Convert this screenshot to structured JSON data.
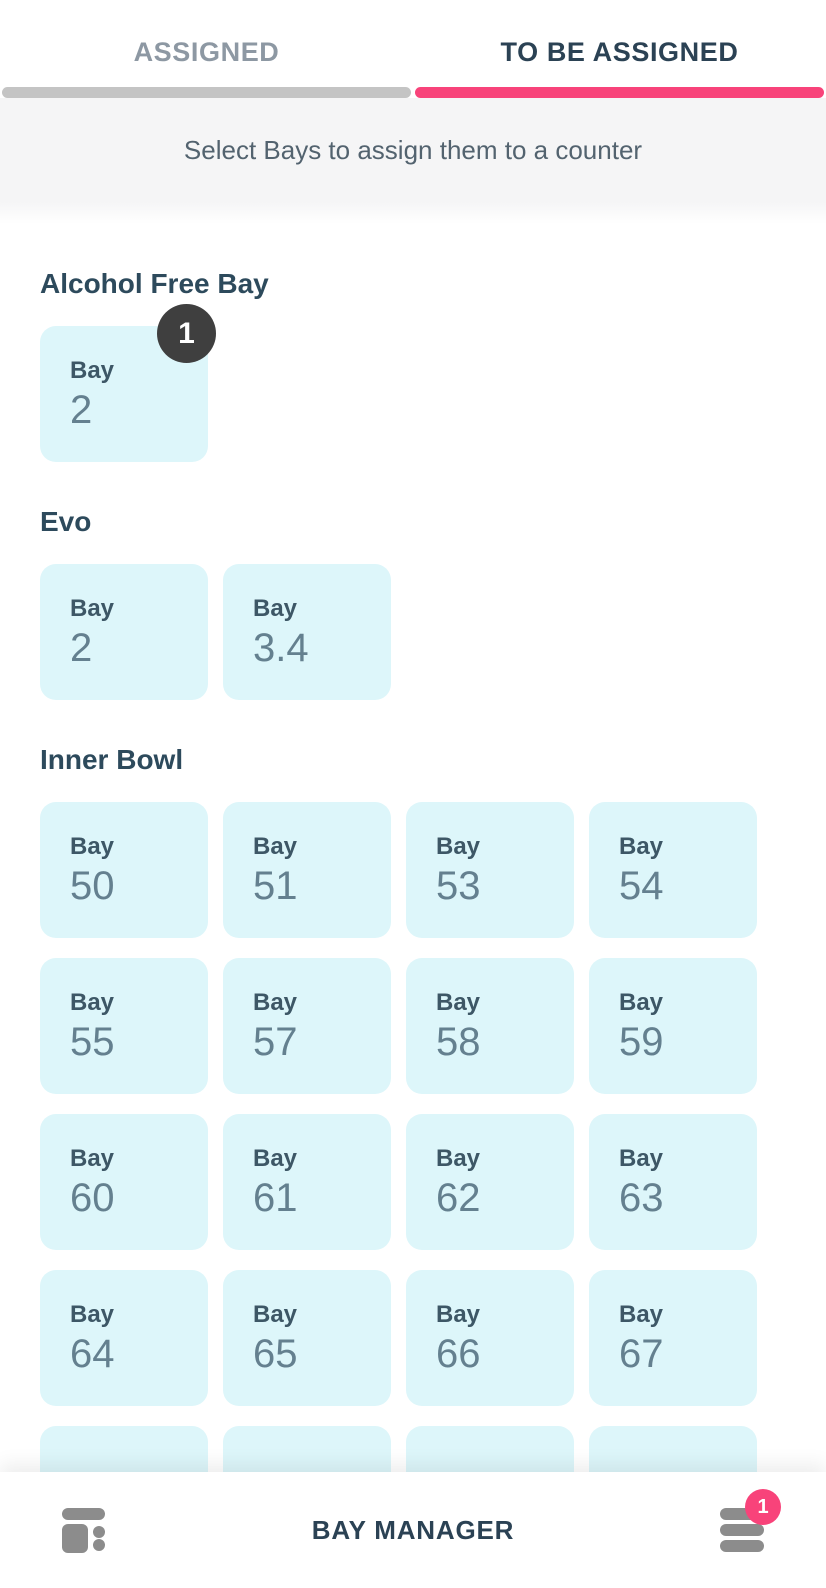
{
  "tabs": {
    "assigned": "ASSIGNED",
    "to_be_assigned": "TO BE ASSIGNED"
  },
  "subtitle": "Select Bays to assign them to a counter",
  "sections": [
    {
      "title": "Alcohol Free Bay",
      "bays": [
        {
          "label": "Bay",
          "number": "2",
          "badge": "1"
        }
      ]
    },
    {
      "title": "Evo",
      "bays": [
        {
          "label": "Bay",
          "number": "2"
        },
        {
          "label": "Bay",
          "number": "3.4"
        }
      ]
    },
    {
      "title": "Inner Bowl",
      "bays": [
        {
          "label": "Bay",
          "number": "50"
        },
        {
          "label": "Bay",
          "number": "51"
        },
        {
          "label": "Bay",
          "number": "53"
        },
        {
          "label": "Bay",
          "number": "54"
        },
        {
          "label": "Bay",
          "number": "55"
        },
        {
          "label": "Bay",
          "number": "57"
        },
        {
          "label": "Bay",
          "number": "58"
        },
        {
          "label": "Bay",
          "number": "59"
        },
        {
          "label": "Bay",
          "number": "60"
        },
        {
          "label": "Bay",
          "number": "61"
        },
        {
          "label": "Bay",
          "number": "62"
        },
        {
          "label": "Bay",
          "number": "63"
        },
        {
          "label": "Bay",
          "number": "64"
        },
        {
          "label": "Bay",
          "number": "65"
        },
        {
          "label": "Bay",
          "number": "66"
        },
        {
          "label": "Bay",
          "number": "67"
        }
      ],
      "partial_next_row_cards": 4
    }
  ],
  "bottom_bar": {
    "title": "BAY MANAGER",
    "left_icon": "bay-layout-icon",
    "right_icon": "list-menu-icon",
    "right_badge_count": "1"
  },
  "colors": {
    "accent_pink": "#f8437a",
    "inactive_indicator_gray": "#c4c4c4",
    "card_background_cyan": "#ddf6fa",
    "dark_navy_text": "#2b4254",
    "card_number_slate": "#64808f",
    "selection_badge_dark": "#3f3f3f",
    "icon_gray": "#8c8c8c",
    "subtitle_band_gray": "#f5f5f6"
  }
}
